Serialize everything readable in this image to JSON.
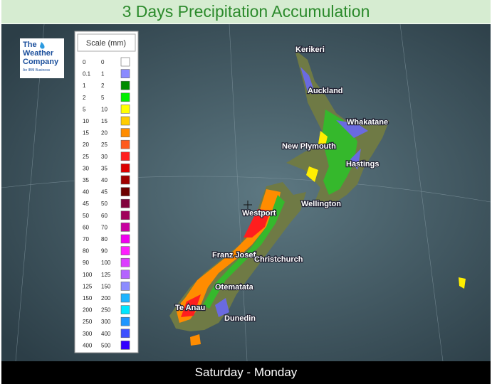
{
  "header": {
    "title": "3 Days Precipitation Accumulation"
  },
  "logo": {
    "line1": "The",
    "line2": "Weather",
    "line3": "Company",
    "tagline": "An IBM Business"
  },
  "legend": {
    "title": "Scale (mm)",
    "rows": [
      {
        "from": "0",
        "to": "0",
        "color": "#ffffff"
      },
      {
        "from": "0.1",
        "to": "1",
        "color": "#8a8aff"
      },
      {
        "from": "1",
        "to": "2",
        "color": "#008c00"
      },
      {
        "from": "2",
        "to": "5",
        "color": "#00ee00"
      },
      {
        "from": "5",
        "to": "10",
        "color": "#ffff00"
      },
      {
        "from": "10",
        "to": "15",
        "color": "#ffcc00"
      },
      {
        "from": "15",
        "to": "20",
        "color": "#ff8c00"
      },
      {
        "from": "20",
        "to": "25",
        "color": "#ff5a1e"
      },
      {
        "from": "25",
        "to": "30",
        "color": "#ff1e1e"
      },
      {
        "from": "30",
        "to": "35",
        "color": "#dc0000"
      },
      {
        "from": "35",
        "to": "40",
        "color": "#a00000"
      },
      {
        "from": "40",
        "to": "45",
        "color": "#6e0000"
      },
      {
        "from": "45",
        "to": "50",
        "color": "#82003c"
      },
      {
        "from": "50",
        "to": "60",
        "color": "#a0005a"
      },
      {
        "from": "60",
        "to": "70",
        "color": "#c800a0"
      },
      {
        "from": "70",
        "to": "80",
        "color": "#f000f0"
      },
      {
        "from": "80",
        "to": "90",
        "color": "#ff1eff"
      },
      {
        "from": "90",
        "to": "100",
        "color": "#dc3cff"
      },
      {
        "from": "100",
        "to": "125",
        "color": "#b464ff"
      },
      {
        "from": "125",
        "to": "150",
        "color": "#8c8cff"
      },
      {
        "from": "150",
        "to": "200",
        "color": "#1eb4ff"
      },
      {
        "from": "200",
        "to": "250",
        "color": "#00e6ff"
      },
      {
        "from": "250",
        "to": "300",
        "color": "#1e96ff"
      },
      {
        "from": "300",
        "to": "400",
        "color": "#3c50ff"
      },
      {
        "from": "400",
        "to": "500",
        "color": "#3200ff"
      }
    ]
  },
  "cities": [
    "Kerikeri",
    "Auckland",
    "Whakatane",
    "New Plymouth",
    "Hastings",
    "Wellington",
    "Westport",
    "Franz Josef",
    "Christchurch",
    "Otematata",
    "Te Anau",
    "Dunedin"
  ],
  "footer": {
    "period": "Saturday - Monday"
  }
}
